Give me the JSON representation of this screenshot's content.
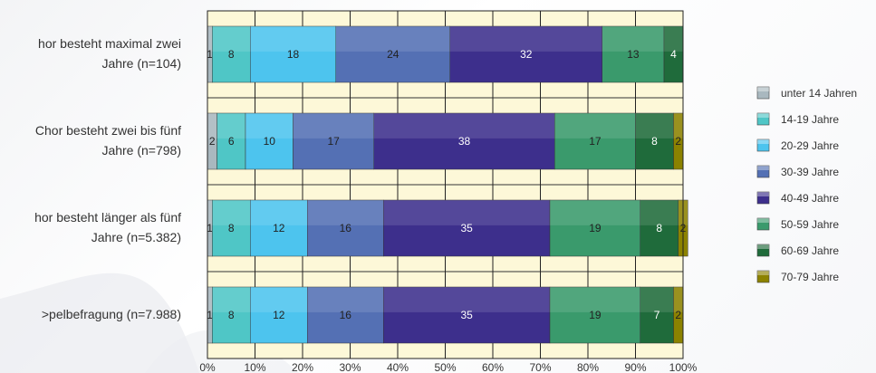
{
  "chart_data": {
    "type": "bar",
    "orientation": "horizontal",
    "stacked": "percent",
    "categories": [
      [
        "hor besteht maximal zwei",
        "Jahre (n=104)"
      ],
      [
        "Chor besteht zwei bis fünf",
        "Jahre (n=798)"
      ],
      [
        "hor besteht länger als fünf",
        "Jahre (n=5.382)"
      ],
      [
        ">pelbefragung (n=7.988)"
      ]
    ],
    "series": [
      {
        "name": "unter 14 Jahren",
        "color": "#a9b8bf",
        "values": [
          1,
          2,
          1,
          1
        ],
        "labels": [
          "1",
          "2",
          "1",
          "1"
        ]
      },
      {
        "name": "14-19 Jahre",
        "color": "#4fc6c6",
        "values": [
          8,
          6,
          8,
          8
        ],
        "labels": [
          "8",
          "6",
          "8",
          "8"
        ]
      },
      {
        "name": "20-29 Jahre",
        "color": "#4dc4ee",
        "values": [
          18,
          10,
          12,
          12
        ],
        "labels": [
          "18",
          "10",
          "12",
          "12"
        ]
      },
      {
        "name": "30-39 Jahre",
        "color": "#5470b4",
        "values": [
          24,
          17,
          16,
          16
        ],
        "labels": [
          "24",
          "17",
          "16",
          "16"
        ]
      },
      {
        "name": "40-49 Jahre",
        "color": "#3d2f8c",
        "values": [
          32,
          38,
          35,
          35
        ],
        "labels": [
          "32",
          "38",
          "35",
          "35"
        ]
      },
      {
        "name": "50-59 Jahre",
        "color": "#3a9a6c",
        "values": [
          13,
          17,
          19,
          19
        ],
        "labels": [
          "13",
          "17",
          "19",
          "19"
        ]
      },
      {
        "name": "60-69 Jahre",
        "color": "#1f6b3b",
        "values": [
          4,
          8,
          8,
          7
        ],
        "labels": [
          "4",
          "8",
          "8",
          "7"
        ]
      },
      {
        "name": "70-79 Jahre",
        "color": "#8c8200",
        "values": [
          0,
          2,
          2,
          2
        ],
        "labels": [
          "",
          "2",
          "2",
          "2"
        ]
      }
    ],
    "xlim": [
      0,
      100
    ],
    "xticks": [
      "0%",
      "10%",
      "20%",
      "30%",
      "40%",
      "50%",
      "60%",
      "70%",
      "80%",
      "90%",
      "100%"
    ],
    "plot_background": "#fdf8d8",
    "grid": true,
    "legend_position": "right"
  }
}
